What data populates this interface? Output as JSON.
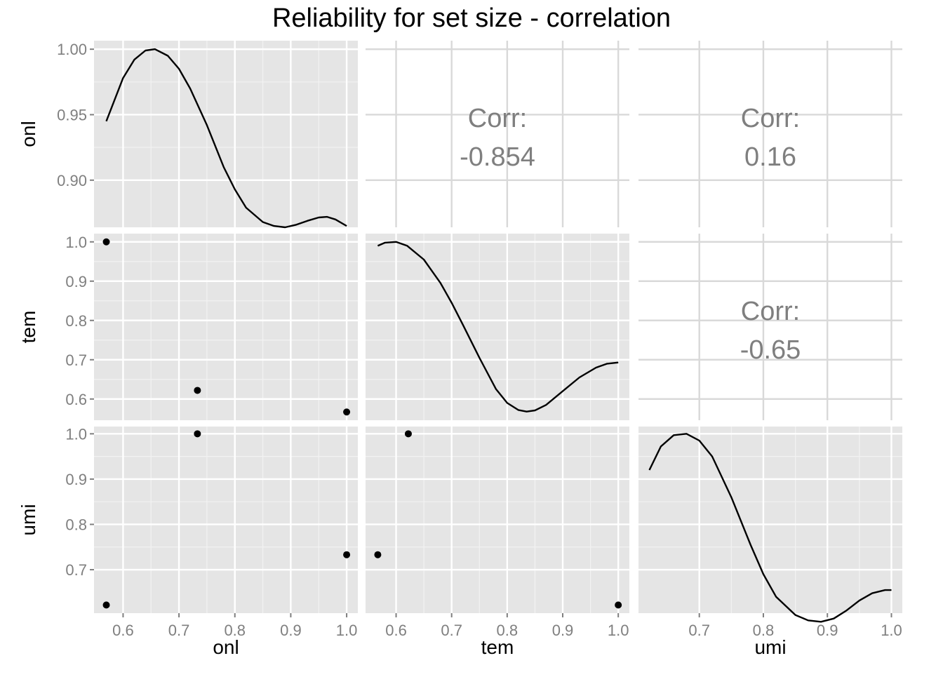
{
  "title": "Reliability for set size - correlation",
  "variables": [
    "onl",
    "tem",
    "umi"
  ],
  "chart_data": {
    "type": "scatter",
    "title": "Reliability for set size - correlation",
    "variables": [
      "onl",
      "tem",
      "umi"
    ],
    "observations": [
      {
        "onl": 0.57,
        "tem": 1.0,
        "umi": 0.622
      },
      {
        "onl": 0.733,
        "tem": 0.622,
        "umi": 1.0
      },
      {
        "onl": 1.0,
        "tem": 0.567,
        "umi": 0.733
      }
    ],
    "correlations": [
      {
        "row": "onl",
        "col": "tem",
        "label": "Corr:",
        "value": "-0.854"
      },
      {
        "row": "onl",
        "col": "umi",
        "label": "Corr:",
        "value": "0.16"
      },
      {
        "row": "tem",
        "col": "umi",
        "label": "Corr:",
        "value": "-0.65"
      }
    ],
    "x_ticks": {
      "onl": [
        "0.6",
        "0.7",
        "0.8",
        "0.9",
        "1.0"
      ],
      "tem": [
        "0.6",
        "0.7",
        "0.8",
        "0.9",
        "1.0"
      ],
      "umi": [
        "0.7",
        "0.8",
        "0.9",
        "1.0"
      ]
    },
    "x_ranges": {
      "onl": [
        0.548,
        1.02
      ],
      "tem": [
        0.545,
        1.02
      ],
      "umi": [
        0.605,
        1.017
      ]
    },
    "y_ticks": {
      "onl": [
        "1.00",
        "0.95",
        "0.90"
      ],
      "tem": [
        "1.0",
        "0.9",
        "0.8",
        "0.7",
        "0.6"
      ],
      "umi": [
        "1.0",
        "0.9",
        "0.8",
        "0.7"
      ]
    },
    "y_ranges": {
      "onl": [
        0.864,
        1.0065
      ],
      "tem": [
        0.546,
        1.021
      ],
      "umi": [
        0.604,
        1.016
      ]
    },
    "y_tick_values": {
      "onl": [
        1.0,
        0.95,
        0.9
      ],
      "tem": [
        1.0,
        0.9,
        0.8,
        0.7,
        0.6
      ],
      "umi": [
        1.0,
        0.9,
        0.8,
        0.7
      ]
    },
    "x_tick_values": {
      "onl": [
        0.6,
        0.7,
        0.8,
        0.9,
        1.0
      ],
      "tem": [
        0.6,
        0.7,
        0.8,
        0.9,
        1.0
      ],
      "umi": [
        0.7,
        0.8,
        0.9,
        1.0
      ]
    },
    "density_curves": {
      "onl": {
        "x": [
          0.57,
          0.6,
          0.62,
          0.64,
          0.657,
          0.68,
          0.7,
          0.72,
          0.75,
          0.78,
          0.8,
          0.82,
          0.85,
          0.87,
          0.89,
          0.91,
          0.93,
          0.95,
          0.965,
          0.98,
          1.0
        ],
        "y": [
          0.945,
          0.978,
          0.992,
          0.999,
          1.0,
          0.995,
          0.985,
          0.97,
          0.942,
          0.91,
          0.893,
          0.879,
          0.868,
          0.865,
          0.864,
          0.866,
          0.869,
          0.8715,
          0.872,
          0.87,
          0.865
        ]
      },
      "tem": {
        "x": [
          0.567,
          0.58,
          0.6,
          0.62,
          0.65,
          0.68,
          0.7,
          0.72,
          0.75,
          0.78,
          0.8,
          0.82,
          0.835,
          0.85,
          0.87,
          0.9,
          0.93,
          0.96,
          0.98,
          1.0
        ],
        "y": [
          0.99,
          0.998,
          1.0,
          0.99,
          0.955,
          0.895,
          0.845,
          0.79,
          0.705,
          0.625,
          0.59,
          0.572,
          0.568,
          0.571,
          0.585,
          0.62,
          0.655,
          0.68,
          0.69,
          0.693
        ]
      },
      "umi": {
        "x": [
          0.622,
          0.64,
          0.66,
          0.68,
          0.7,
          0.72,
          0.75,
          0.78,
          0.8,
          0.82,
          0.85,
          0.87,
          0.89,
          0.91,
          0.93,
          0.95,
          0.97,
          0.99,
          1.0
        ],
        "y": [
          0.92,
          0.972,
          0.997,
          1.0,
          0.985,
          0.95,
          0.86,
          0.755,
          0.69,
          0.64,
          0.6,
          0.588,
          0.585,
          0.592,
          0.61,
          0.632,
          0.648,
          0.655,
          0.655
        ]
      }
    }
  }
}
